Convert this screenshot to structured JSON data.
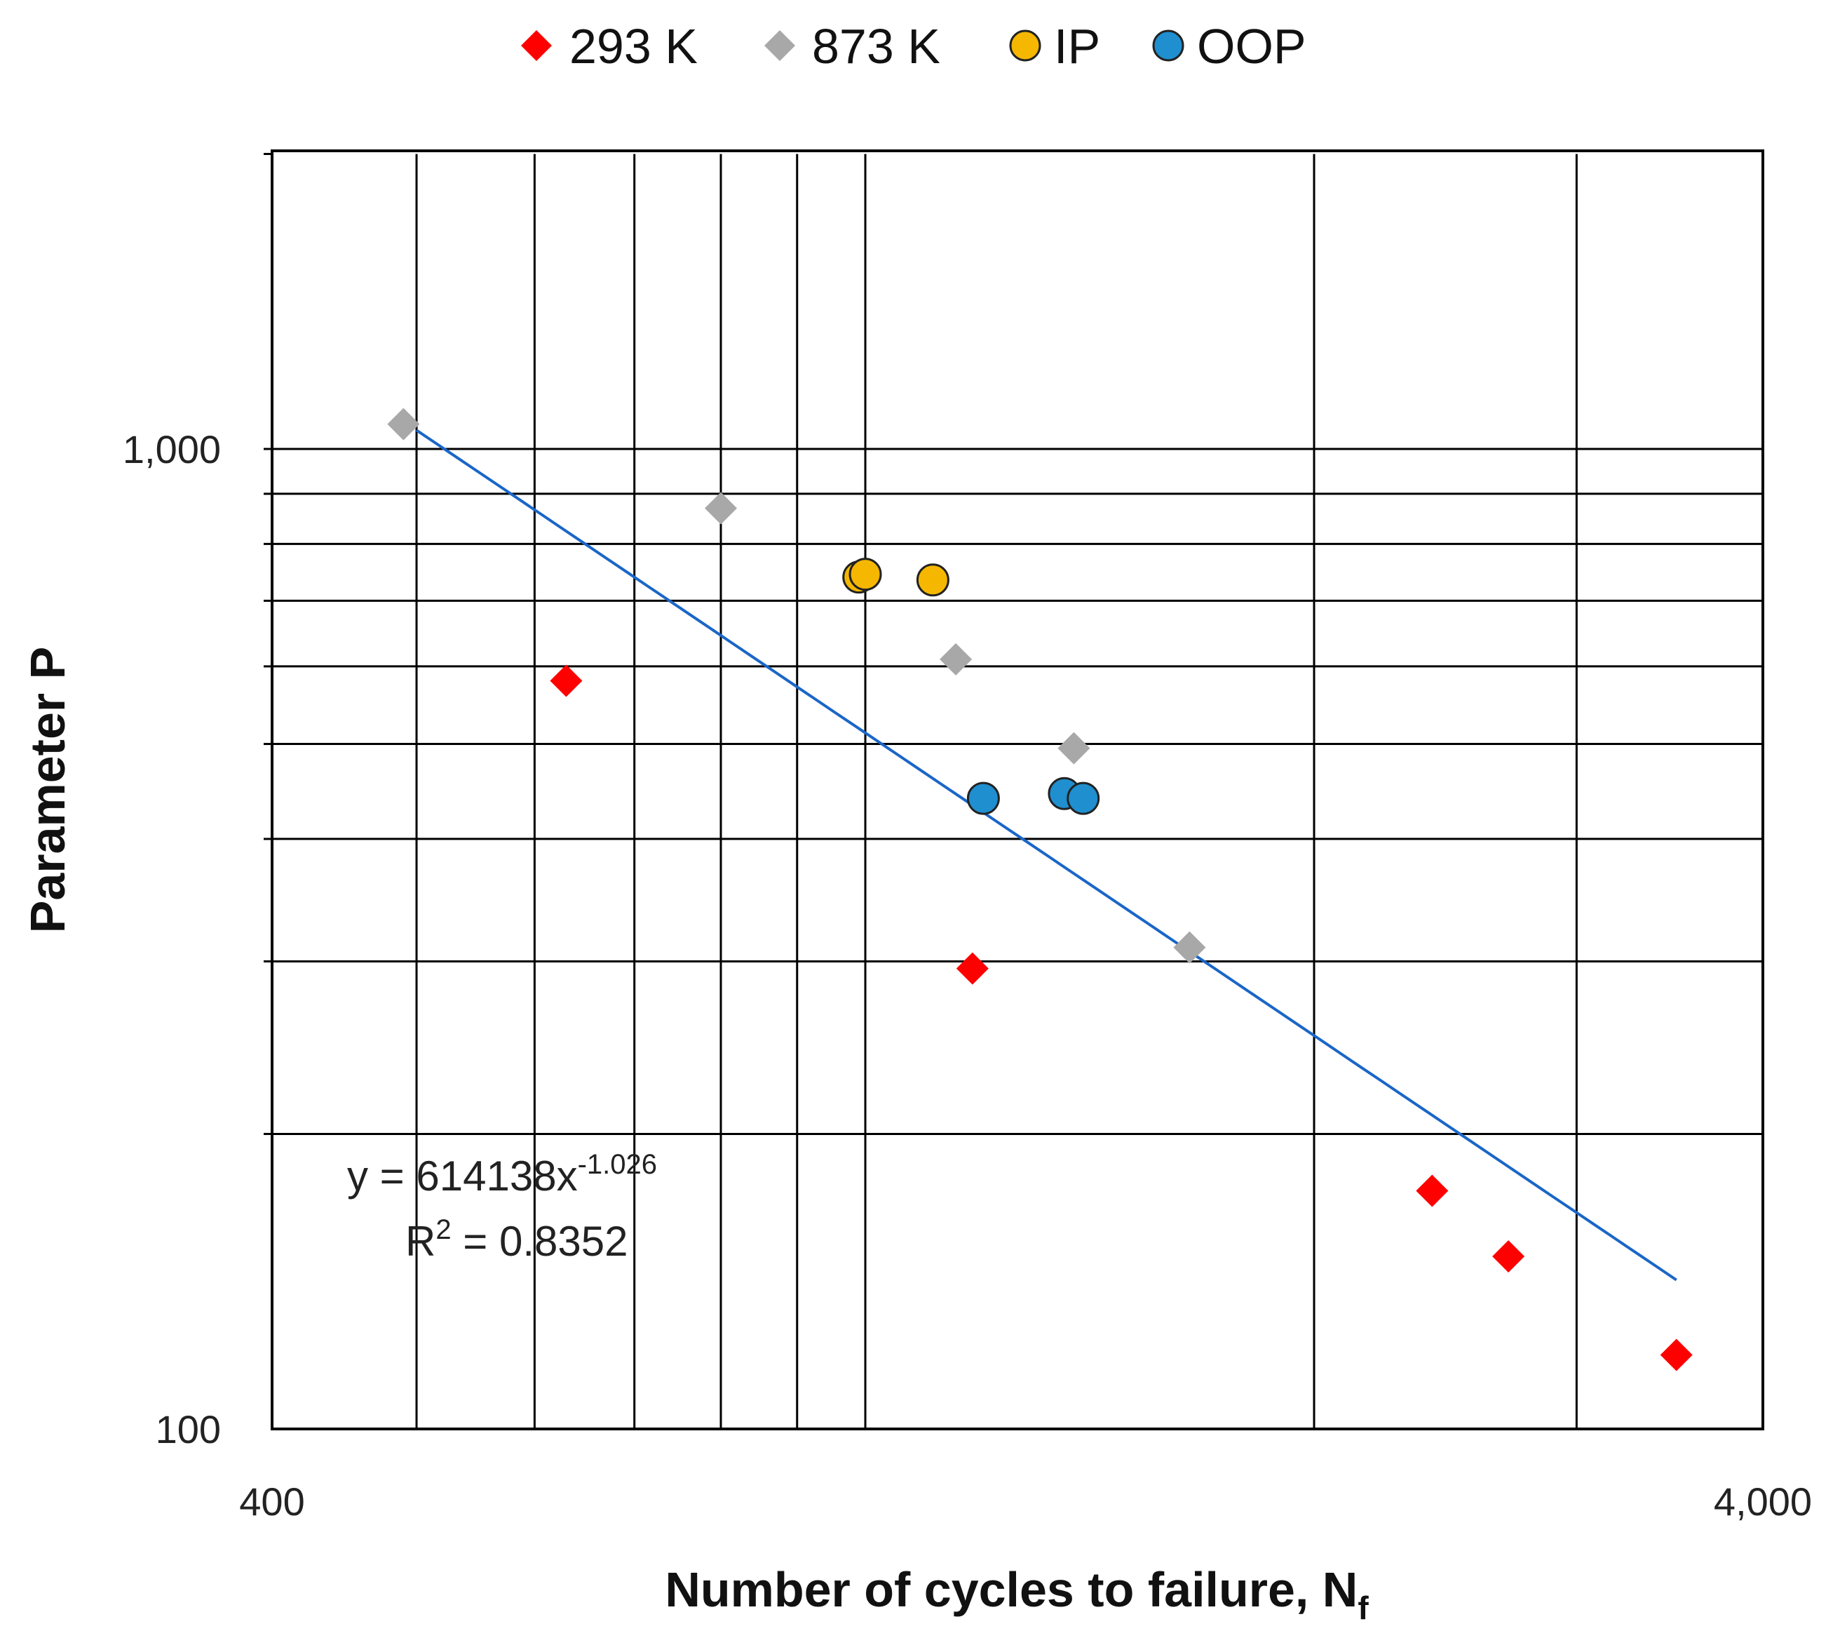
{
  "chart_data": {
    "type": "scatter",
    "xlabel": "Number of cycles to failure, N",
    "xlabel_subscript": "f",
    "ylabel": "Parameter P",
    "x_scale": "log",
    "y_scale": "log",
    "xlim": [
      400,
      4000
    ],
    "ylim": [
      100,
      2000
    ],
    "x_tick_labels": [
      "400",
      "4,000"
    ],
    "y_tick_labels": [
      "1,000",
      "100"
    ],
    "grid": true,
    "legend_position": "top",
    "series": [
      {
        "name": "293 K",
        "marker": "diamond",
        "color": "#ff0000",
        "points": [
          [
            630,
            580
          ],
          [
            1180,
            295
          ],
          [
            2400,
            175
          ],
          [
            2700,
            150
          ],
          [
            3500,
            119
          ]
        ]
      },
      {
        "name": "873 K",
        "marker": "diamond",
        "color": "#a8a8a8",
        "points": [
          [
            490,
            1060
          ],
          [
            800,
            870
          ],
          [
            1150,
            610
          ],
          [
            1380,
            495
          ],
          [
            1650,
            310
          ]
        ]
      },
      {
        "name": "IP",
        "marker": "circle",
        "color": "#f5b700",
        "points": [
          [
            990,
            740
          ],
          [
            1000,
            745
          ],
          [
            1110,
            735
          ]
        ]
      },
      {
        "name": "OOP",
        "marker": "circle",
        "color": "#1f8fd0",
        "points": [
          [
            1200,
            440
          ],
          [
            1360,
            445
          ],
          [
            1400,
            440
          ]
        ]
      }
    ],
    "trendline": {
      "type": "power",
      "color": "#1a66c7",
      "x_range": [
        500,
        3500
      ],
      "coefficient": 614138,
      "exponent": -1.026,
      "equation_main": "y = 614138x",
      "equation_exponent": "-1.026",
      "r2_main": "R",
      "r2_power": "2",
      "r2_value": " = 0.8352"
    }
  }
}
